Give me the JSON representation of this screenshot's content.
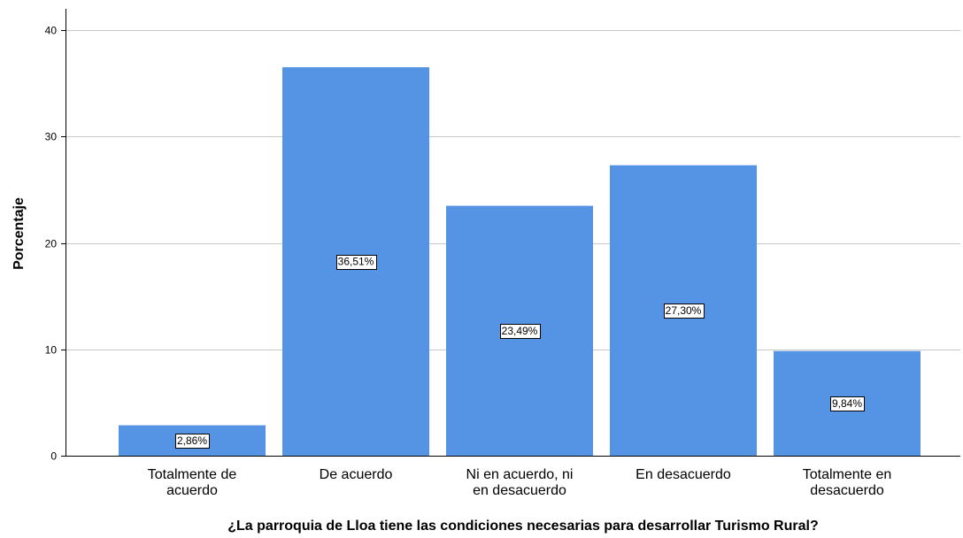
{
  "chart_data": {
    "type": "bar",
    "categories": [
      [
        "Totalmente de",
        "acuerdo"
      ],
      [
        "De acuerdo"
      ],
      [
        "Ni en acuerdo, ni",
        "en desacuerdo"
      ],
      [
        "En desacuerdo"
      ],
      [
        "Totalmente en",
        "desacuerdo"
      ]
    ],
    "values": [
      2.86,
      36.51,
      23.49,
      27.3,
      9.84
    ],
    "data_labels": [
      "2,86%",
      "36,51%",
      "23,49%",
      "27,30%",
      "9,84%"
    ],
    "xlabel": "¿La parroquia de Lloa tiene las condiciones necesarias para desarrollar Turismo Rural?",
    "ylabel": "Porcentaje",
    "ylim": [
      0,
      42
    ],
    "yticks": [
      0,
      10,
      20,
      30,
      40
    ],
    "grid": true,
    "colors": {
      "bar": "#5594e4",
      "grid": "#c8c8c8",
      "axis": "#000000"
    }
  }
}
